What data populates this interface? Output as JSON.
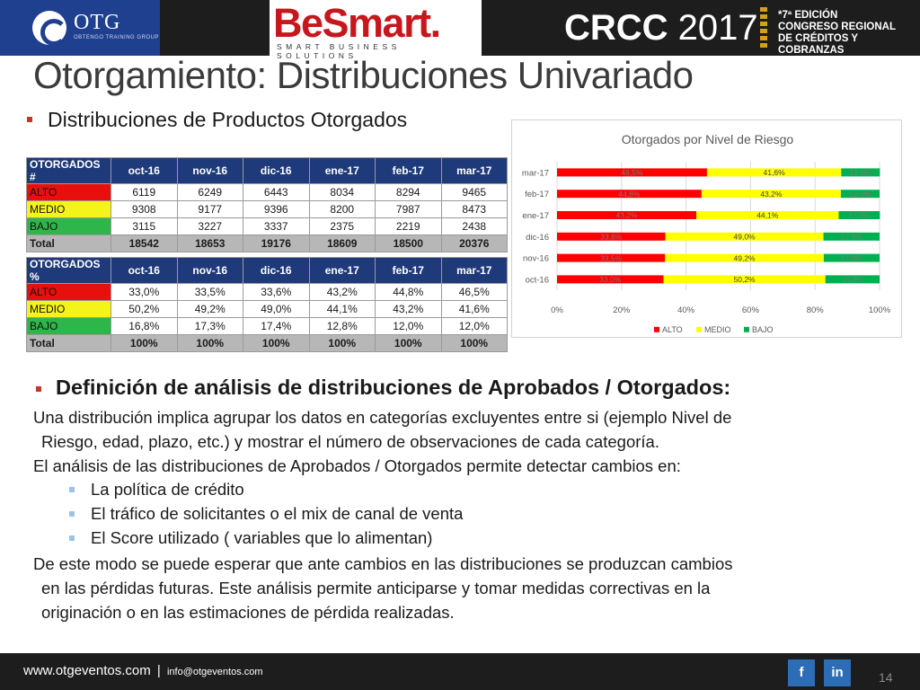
{
  "header": {
    "otg_name": "OTG",
    "otg_sub": "OBTENGO TRAINING GROUP",
    "besmart_word": "BeSmart.",
    "besmart_tag": "SMART BUSINESS SOLUTIONS",
    "crcc_bold": "CRCC",
    "crcc_year": "2017",
    "crcc_line1": "7ª EDICIÓN",
    "crcc_line2": "CONGRESO REGIONAL",
    "crcc_line3": "DE CRÉDITOS Y COBRANZAS"
  },
  "title": "Otorgamiento: Distribuciones Univariado",
  "section1_title": "Distribuciones de Productos Otorgados",
  "tables": {
    "counts": {
      "corner": "OTORGADOS #",
      "months": [
        "oct-16",
        "nov-16",
        "dic-16",
        "ene-17",
        "feb-17",
        "mar-17"
      ],
      "rows": [
        {
          "label": "ALTO",
          "values": [
            "6119",
            "6249",
            "6443",
            "8034",
            "8294",
            "9465"
          ]
        },
        {
          "label": "MEDIO",
          "values": [
            "9308",
            "9177",
            "9396",
            "8200",
            "7987",
            "8473"
          ]
        },
        {
          "label": "BAJO",
          "values": [
            "3115",
            "3227",
            "3337",
            "2375",
            "2219",
            "2438"
          ]
        }
      ],
      "total": {
        "label": "Total",
        "values": [
          "18542",
          "18653",
          "19176",
          "18609",
          "18500",
          "20376"
        ]
      }
    },
    "pct": {
      "corner": "OTORGADOS %",
      "months": [
        "oct-16",
        "nov-16",
        "dic-16",
        "ene-17",
        "feb-17",
        "mar-17"
      ],
      "rows": [
        {
          "label": "ALTO",
          "values": [
            "33,0%",
            "33,5%",
            "33,6%",
            "43,2%",
            "44,8%",
            "46,5%"
          ]
        },
        {
          "label": "MEDIO",
          "values": [
            "50,2%",
            "49,2%",
            "49,0%",
            "44,1%",
            "43,2%",
            "41,6%"
          ]
        },
        {
          "label": "BAJO",
          "values": [
            "16,8%",
            "17,3%",
            "17,4%",
            "12,8%",
            "12,0%",
            "12,0%"
          ]
        }
      ],
      "total": {
        "label": "Total",
        "values": [
          "100%",
          "100%",
          "100%",
          "100%",
          "100%",
          "100%"
        ]
      }
    }
  },
  "chart_data": {
    "type": "bar",
    "orientation": "horizontal",
    "stacked": "percent",
    "title": "Otorgados por Nivel de Riesgo",
    "categories": [
      "mar-17",
      "feb-17",
      "ene-17",
      "dic-16",
      "nov-16",
      "oct-16"
    ],
    "series": [
      {
        "name": "ALTO",
        "color": "#ff0000",
        "values": [
          46.5,
          44.8,
          43.2,
          33.6,
          33.5,
          33.0
        ],
        "labels": [
          "46,5%",
          "44,8%",
          "43,2%",
          "33,6%",
          "33,5%",
          "33,0%"
        ]
      },
      {
        "name": "MEDIO",
        "color": "#ffff00",
        "values": [
          41.6,
          43.2,
          44.1,
          49.0,
          49.2,
          50.2
        ],
        "labels": [
          "41,6%",
          "43,2%",
          "44,1%",
          "49,0%",
          "49,2%",
          "50,2%"
        ]
      },
      {
        "name": "BAJO",
        "color": "#00b050",
        "values": [
          12.0,
          12.0,
          12.8,
          17.4,
          17.3,
          16.8
        ],
        "labels": [
          "12,0%",
          "12,0%",
          "12,8%",
          "17,4%",
          "17,3%",
          "16,8%"
        ]
      }
    ],
    "xlim": [
      0,
      100
    ],
    "xticks": [
      "0%",
      "20%",
      "40%",
      "60%",
      "80%",
      "100%"
    ],
    "legend": "bottom",
    "grid": true
  },
  "section2": {
    "title": "Definición de análisis de distribuciones de Aprobados / Otorgados:",
    "p1_line1": "Una distribución implica agrupar los datos en categorías excluyentes entre si (ejemplo Nivel de",
    "p1_line2": "Riesgo, edad, plazo, etc.) y mostrar el número de observaciones de cada categoría.",
    "p2": "El análisis de las distribuciones de Aprobados / Otorgados permite detectar cambios en:",
    "items": [
      "La política de crédito",
      "El tráfico de solicitantes o el mix de canal de venta",
      "El Score utilizado ( variables que lo alimentan)"
    ],
    "p3_line1": "De este modo se puede esperar que ante cambios en las distribuciones se produzcan cambios",
    "p3_line2": "en las pérdidas futuras. Este análisis permite anticiparse y tomar medidas correctivas en la",
    "p3_line3": "originación o en las estimaciones de pérdida realizadas."
  },
  "footer": {
    "website": "www.otgeventos.com",
    "separator": "|",
    "email": "info@otgeventos.com",
    "facebook": "f",
    "linkedin": "in",
    "page_number": "14"
  }
}
